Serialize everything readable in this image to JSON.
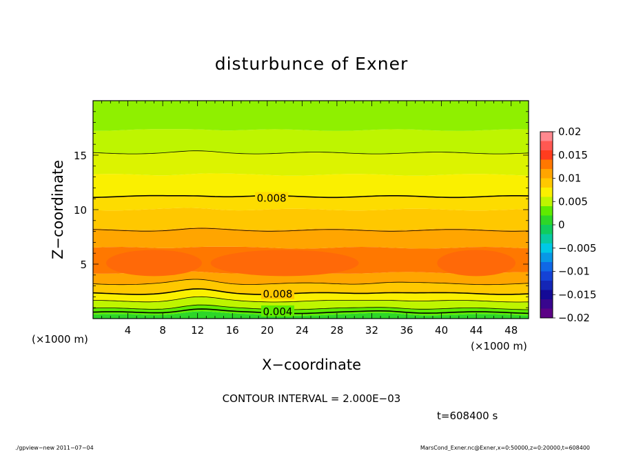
{
  "chart_data": {
    "type": "heatmap",
    "title": "disturbunce of Exner",
    "xlabel": "X−coordinate",
    "ylabel": "Z−coordinate",
    "x_unit_left": "(×1000 m)",
    "x_unit_right": "(×1000 m)",
    "xlim": [
      0,
      50
    ],
    "ylim": [
      0,
      20
    ],
    "x_ticks": [
      4,
      8,
      12,
      16,
      20,
      24,
      28,
      32,
      36,
      40,
      44,
      48
    ],
    "y_ticks": [
      5,
      10,
      15
    ],
    "x_minor_step": 1,
    "y_minor_step": 1,
    "colorbar": {
      "ticks": [
        "0.02",
        "0.015",
        "0.01",
        "0.005",
        "0",
        "−0.005",
        "−0.01",
        "−0.015",
        "−0.02"
      ],
      "range": [
        -0.02,
        0.02
      ],
      "levels": 20
    },
    "bands": [
      {
        "z0": 0.0,
        "z1": 0.35,
        "value": 0.001
      },
      {
        "z0": 0.35,
        "z1": 0.9,
        "value": 0.003
      },
      {
        "z0": 0.9,
        "z1": 1.6,
        "value": 0.005
      },
      {
        "z0": 1.6,
        "z1": 2.3,
        "value": 0.007
      },
      {
        "z0": 2.3,
        "z1": 3.2,
        "value": 0.009
      },
      {
        "z0": 3.2,
        "z1": 4.2,
        "value": 0.011
      },
      {
        "z0": 4.2,
        "z1": 6.5,
        "value": 0.013
      },
      {
        "z0": 6.5,
        "z1": 8.2,
        "value": 0.011
      },
      {
        "z0": 8.2,
        "z1": 10.0,
        "value": 0.009
      },
      {
        "z0": 10.0,
        "z1": 11.2,
        "value": 0.008
      },
      {
        "z0": 11.2,
        "z1": 13.2,
        "value": 0.007
      },
      {
        "z0": 13.2,
        "z1": 15.2,
        "value": 0.006
      },
      {
        "z0": 15.2,
        "z1": 17.3,
        "value": 0.005
      },
      {
        "z0": 17.3,
        "z1": 20.0,
        "value": 0.004
      }
    ],
    "contours": [
      {
        "z": 0.55,
        "bold": true
      },
      {
        "z": 0.9,
        "bold": false
      },
      {
        "z": 1.6,
        "bold": false
      },
      {
        "z": 2.3,
        "bold": true
      },
      {
        "z": 3.2,
        "bold": false
      },
      {
        "z": 8.1,
        "bold": false
      },
      {
        "z": 11.2,
        "bold": true
      },
      {
        "z": 15.2,
        "bold": false
      }
    ],
    "contour_labels": [
      {
        "text": "0.008",
        "x": 20.5,
        "z": 11.1
      },
      {
        "text": "0.008",
        "x": 21.2,
        "z": 2.3
      },
      {
        "text": "0.004",
        "x": 21.2,
        "z": 0.7
      }
    ],
    "contour_interval": "CONTOUR INTERVAL = 2.000E−03",
    "time_label": "t=608400 s"
  },
  "footer": {
    "left": "./gpview−new   2011−07−04",
    "right": "MarsCond_Exner.nc@Exner,x=0:50000,z=0:20000,t=608400"
  }
}
